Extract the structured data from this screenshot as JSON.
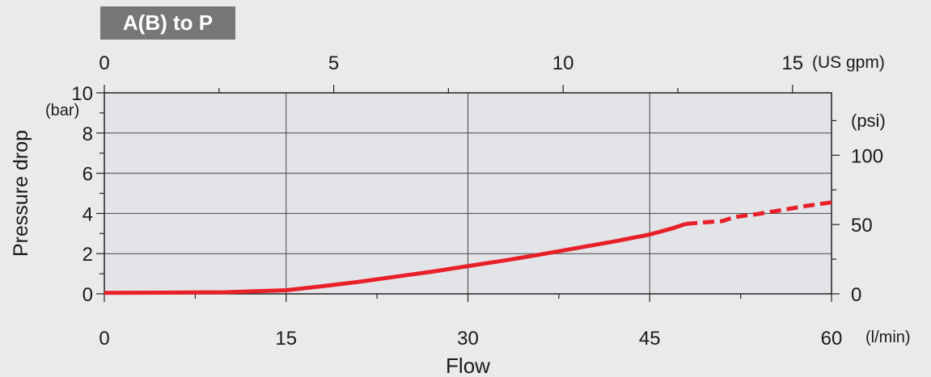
{
  "colors": {
    "background": "#eaeaea",
    "plot_background": "#e2e4e8",
    "badge": "#777777",
    "line": "#e8202a"
  },
  "chart_data": {
    "type": "line",
    "title": "A(B) to P",
    "xlabel": "Flow",
    "ylabel": "Pressure drop",
    "x_unit": "(l/min)",
    "y_unit": "(bar)",
    "top_axis": {
      "unit": "(US gpm)",
      "ticks": [
        0,
        5,
        10,
        15
      ],
      "range": [
        0,
        15.85
      ]
    },
    "right_axis": {
      "unit": "(psi)",
      "ticks": [
        0,
        50,
        100
      ],
      "range": [
        0,
        145.04
      ]
    },
    "xlim": [
      0,
      60
    ],
    "ylim": [
      0,
      10
    ],
    "x_ticks": [
      0,
      15,
      30,
      45,
      60
    ],
    "y_ticks": [
      0,
      2,
      4,
      6,
      8,
      10
    ],
    "grid": true,
    "series": [
      {
        "style": "solid",
        "x": [
          0,
          5,
          10,
          15,
          18,
          21,
          24,
          27,
          30,
          33,
          36,
          39,
          42,
          45,
          47,
          48
        ],
        "y": [
          0.05,
          0.06,
          0.08,
          0.18,
          0.38,
          0.6,
          0.85,
          1.1,
          1.38,
          1.66,
          1.96,
          2.28,
          2.6,
          2.95,
          3.28,
          3.48
        ]
      },
      {
        "style": "dashed",
        "x": [
          48,
          50,
          51,
          52,
          54,
          56,
          58,
          60
        ],
        "y": [
          3.48,
          3.58,
          3.62,
          3.82,
          3.98,
          4.18,
          4.38,
          4.55
        ]
      }
    ]
  }
}
